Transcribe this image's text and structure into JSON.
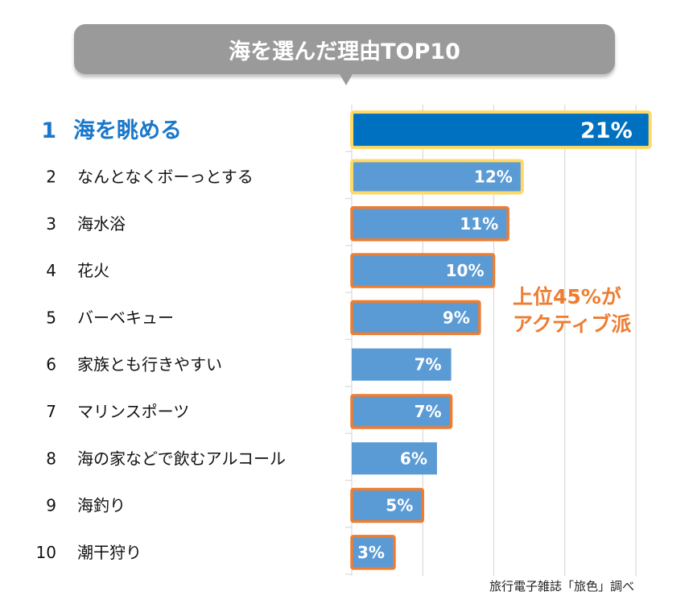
{
  "chart_data": {
    "type": "bar",
    "orientation": "horizontal",
    "title": "海を選んだ理由TOP10",
    "xlabel": "",
    "ylabel": "",
    "xlim": [
      0,
      22
    ],
    "grid": true,
    "grid_step": 5,
    "ranks": [
      "1",
      "2",
      "3",
      "4",
      "5",
      "6",
      "7",
      "8",
      "9",
      "10"
    ],
    "categories": [
      "海を眺める",
      "なんとなくボーっとする",
      "海水浴",
      "花火",
      "バーベキュー",
      "家族とも行きやすい",
      "マリンスポーツ",
      "海の家などで飲むアルコール",
      "海釣り",
      "潮干狩り"
    ],
    "values": [
      21,
      12,
      11,
      10,
      9,
      7,
      7,
      6,
      5,
      3
    ],
    "value_labels": [
      "21%",
      "12%",
      "11%",
      "10%",
      "9%",
      "7%",
      "7%",
      "6%",
      "5%",
      "3%"
    ],
    "highlight": [
      "top",
      "yellow",
      "orange",
      "orange",
      "orange",
      "none",
      "orange",
      "none",
      "orange",
      "orange"
    ],
    "annotation": "上位45%が\nアクティブ派",
    "source": "旅行電子雑誌「旅色」調べ"
  },
  "colors": {
    "top_bar": "#0070c0",
    "bar": "#5b9bd5",
    "yellow_outline": "#ffd966",
    "orange_outline": "#ed7d31",
    "top_label": "#1a77c9",
    "annotation": "#ed7d31",
    "grid": "#d9d9d9",
    "title_bg": "#9a9a9a"
  }
}
